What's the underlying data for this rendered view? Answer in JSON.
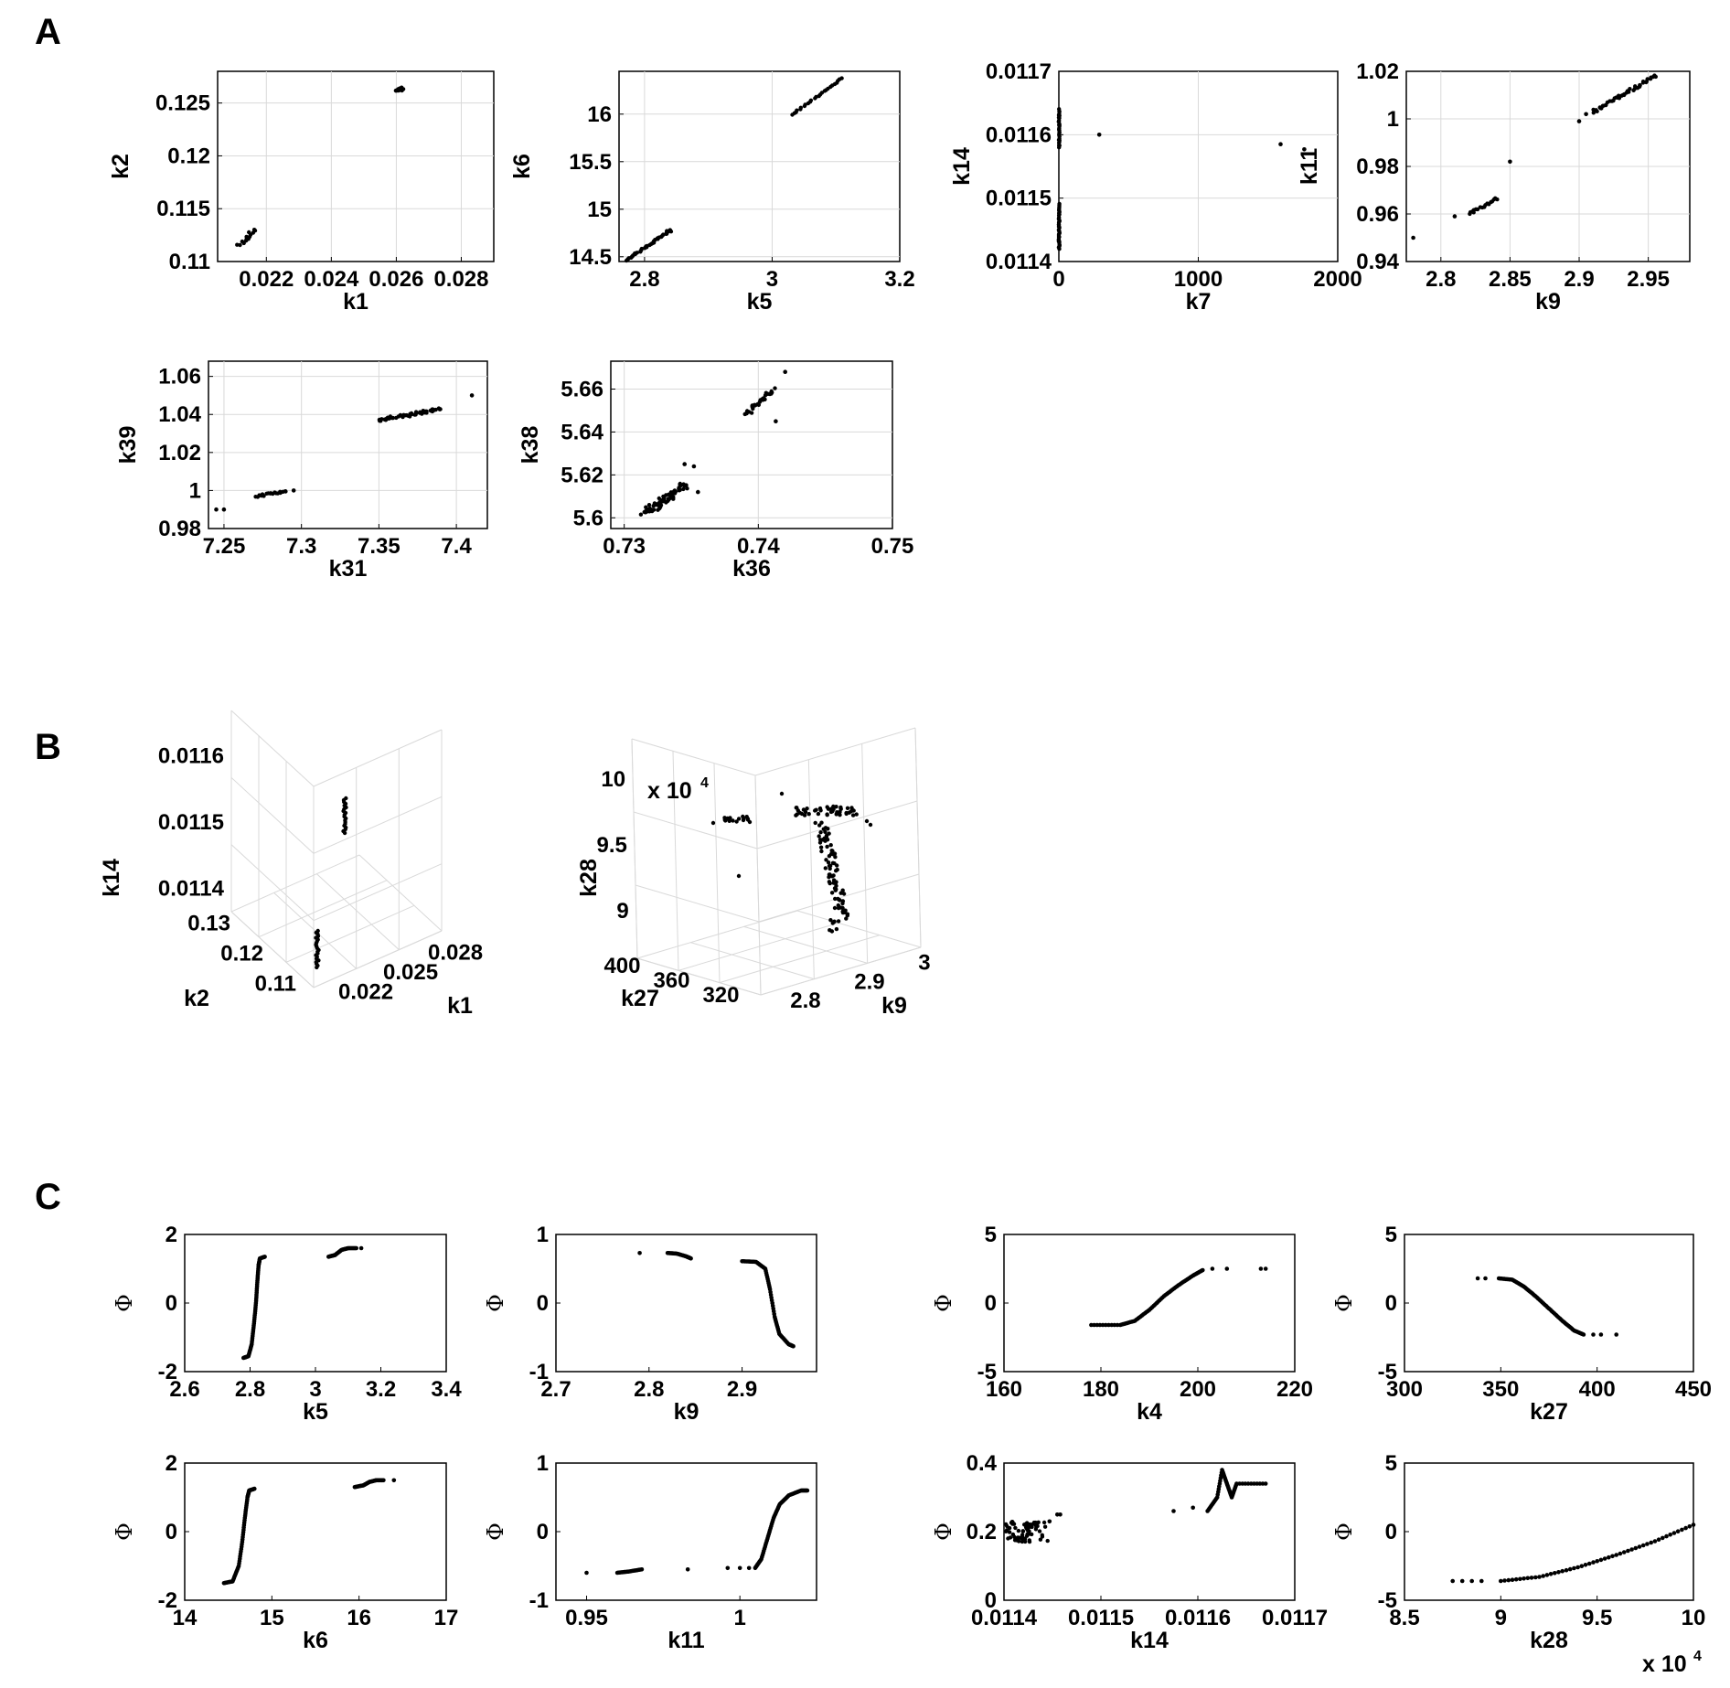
{
  "panels": {
    "A": "A",
    "B": "B",
    "C": "C"
  },
  "chart_data": [
    {
      "panel": "A",
      "type": "scatter",
      "xlabel": "k1",
      "ylabel": "k2",
      "xlim": [
        0.0205,
        0.029
      ],
      "ylim": [
        0.11,
        0.128
      ],
      "xticks": [
        "0.022",
        "0.024",
        "0.026",
        "0.028"
      ],
      "xtickv": [
        0.022,
        0.024,
        0.026,
        0.028
      ],
      "yticks": [
        "0.11",
        "0.115",
        "0.12",
        "0.125"
      ],
      "ytickv": [
        0.11,
        0.115,
        0.12,
        0.125
      ],
      "grid": true,
      "clusters": [
        [
          0.0212,
          0.1115,
          0.0216,
          0.113,
          14,
          0.0001,
          0.0001
        ],
        [
          0.026,
          0.1262,
          0.0262,
          0.1264,
          18,
          7e-05,
          0.00015
        ]
      ],
      "points": []
    },
    {
      "panel": "A",
      "type": "scatter",
      "xlabel": "k5",
      "ylabel": "k6",
      "xlim": [
        2.76,
        3.2
      ],
      "ylim": [
        14.45,
        16.45
      ],
      "xticks": [
        "2.8",
        "3",
        "3.2"
      ],
      "xtickv": [
        2.8,
        3,
        3.2
      ],
      "yticks": [
        "14.5",
        "15",
        "15.5",
        "16"
      ],
      "ytickv": [
        14.5,
        15,
        15.5,
        16
      ],
      "grid": true,
      "clusters": [
        [
          2.77,
          14.46,
          2.84,
          14.77,
          40,
          0.002,
          0.005
        ],
        [
          3.03,
          15.99,
          3.11,
          16.38,
          26,
          0.002,
          0.005
        ]
      ],
      "points": [
        [
          2.835,
          14.77
        ],
        [
          2.84,
          14.78
        ]
      ]
    },
    {
      "panel": "A",
      "type": "scatter",
      "xlabel": "k7",
      "ylabel": "k14",
      "xlim": [
        0,
        2000
      ],
      "ylim": [
        0.0114,
        0.0117
      ],
      "xticks": [
        "0",
        "1000",
        "2000"
      ],
      "xtickv": [
        0,
        1000,
        2000
      ],
      "yticks": [
        "0.0114",
        "0.0115",
        "0.0116",
        "0.0117"
      ],
      "ytickv": [
        0.0114,
        0.0115,
        0.0116,
        0.0117
      ],
      "grid": true,
      "clusters": [
        [
          2,
          0.01142,
          2,
          0.01149,
          40,
          3,
          1e-06
        ],
        [
          2,
          0.01158,
          2,
          0.01164,
          30,
          3,
          1e-06
        ]
      ],
      "points": [
        [
          290,
          0.0116
        ],
        [
          1590,
          0.011585
        ],
        [
          1760,
          0.011577
        ]
      ]
    },
    {
      "panel": "A",
      "type": "scatter",
      "xlabel": "k9",
      "ylabel": "k11",
      "xlim": [
        2.775,
        2.98
      ],
      "ylim": [
        0.94,
        1.02
      ],
      "xticks": [
        "2.8",
        "2.85",
        "2.9",
        "2.95"
      ],
      "xtickv": [
        2.8,
        2.85,
        2.9,
        2.95
      ],
      "yticks": [
        "0.94",
        "0.96",
        "0.98",
        "1",
        "1.02"
      ],
      "ytickv": [
        0.94,
        0.96,
        0.98,
        1,
        1.02
      ],
      "grid": true,
      "clusters": [
        [
          2.82,
          0.96,
          2.84,
          0.9665,
          18,
          0.001,
          0.0006
        ],
        [
          2.91,
          1.003,
          2.955,
          1.018,
          45,
          0.001,
          0.0006
        ]
      ],
      "points": [
        [
          2.78,
          0.95
        ],
        [
          2.81,
          0.959
        ],
        [
          2.85,
          0.982
        ],
        [
          2.9,
          0.999
        ],
        [
          2.905,
          1.002
        ]
      ]
    },
    {
      "panel": "A",
      "type": "scatter",
      "xlabel": "k31",
      "ylabel": "k39",
      "xlim": [
        7.24,
        7.42
      ],
      "ylim": [
        0.98,
        1.068
      ],
      "xticks": [
        "7.25",
        "7.3",
        "7.35",
        "7.4"
      ],
      "xtickv": [
        7.25,
        7.3,
        7.35,
        7.4
      ],
      "yticks": [
        "0.98",
        "1",
        "1.02",
        "1.04",
        "1.06"
      ],
      "ytickv": [
        0.98,
        1,
        1.02,
        1.04,
        1.06
      ],
      "grid": true,
      "clusters": [
        [
          7.27,
          0.997,
          7.29,
          0.9995,
          20,
          0.001,
          0.0007
        ],
        [
          7.35,
          1.037,
          7.39,
          1.043,
          50,
          0.002,
          0.0008
        ]
      ],
      "points": [
        [
          7.245,
          0.99
        ],
        [
          7.25,
          0.99
        ],
        [
          7.295,
          1.0
        ],
        [
          7.41,
          1.05
        ]
      ]
    },
    {
      "panel": "A",
      "type": "scatter",
      "xlabel": "k36",
      "ylabel": "k38",
      "xlim": [
        0.729,
        0.75
      ],
      "ylim": [
        5.595,
        5.673
      ],
      "xticks": [
        "0.73",
        "0.74",
        "0.75"
      ],
      "xtickv": [
        0.73,
        0.74,
        0.75
      ],
      "yticks": [
        "5.6",
        "5.62",
        "5.64",
        "5.66"
      ],
      "ytickv": [
        5.6,
        5.62,
        5.64,
        5.66
      ],
      "grid": true,
      "clusters": [
        [
          0.7315,
          5.602,
          0.7345,
          5.615,
          70,
          0.0003,
          0.0018
        ],
        [
          0.739,
          5.648,
          0.7412,
          5.66,
          30,
          0.00015,
          0.0012
        ]
      ],
      "points": [
        [
          0.7352,
          5.624
        ],
        [
          0.7345,
          5.625
        ],
        [
          0.7413,
          5.645
        ],
        [
          0.742,
          5.668
        ],
        [
          0.7355,
          5.612
        ]
      ]
    },
    {
      "panel": "B",
      "type": "scatter3d",
      "xlabel": "k1",
      "ylabel": "k2",
      "zlabel": "k14",
      "xticks": [
        "0.022",
        "0.025",
        "0.028"
      ],
      "yticks": [
        "0.11",
        "0.12",
        "0.13"
      ],
      "zticks": [
        "0.0114",
        "0.0115",
        "0.0116"
      ],
      "grid": true
    },
    {
      "panel": "B",
      "type": "scatter3d",
      "xlabel": "k9",
      "ylabel": "k27",
      "zlabel": "k28",
      "zscale": "x 10^4",
      "xticks": [
        "2.8",
        "2.9",
        "3"
      ],
      "yticks": [
        "320",
        "360",
        "400"
      ],
      "zticks": [
        "9",
        "9.5",
        "10"
      ],
      "grid": true
    },
    {
      "panel": "C",
      "type": "scatter",
      "xlabel": "k5",
      "ylabel": "Φ",
      "xlim": [
        2.6,
        3.4
      ],
      "ylim": [
        -2,
        2
      ],
      "xticks": [
        "2.6",
        "2.8",
        "3",
        "3.2",
        "3.4"
      ],
      "xtickv": [
        2.6,
        2.8,
        3,
        3.2,
        3.4
      ],
      "yticks": [
        "-2",
        "0",
        "2"
      ],
      "ytickv": [
        -2,
        0,
        2
      ],
      "grid": false,
      "curve": [
        [
          2.78,
          -1.6
        ],
        [
          2.795,
          -1.55
        ],
        [
          2.805,
          -1.2
        ],
        [
          2.812,
          -0.6
        ],
        [
          2.818,
          0
        ],
        [
          2.822,
          0.6
        ],
        [
          2.826,
          1.1
        ],
        [
          2.83,
          1.3
        ],
        [
          2.845,
          1.35
        ]
      ],
      "curve2": [
        [
          3.04,
          1.35
        ],
        [
          3.06,
          1.4
        ],
        [
          3.08,
          1.55
        ],
        [
          3.1,
          1.6
        ],
        [
          3.125,
          1.6
        ]
      ],
      "points": [
        [
          3.14,
          1.6
        ]
      ]
    },
    {
      "panel": "C",
      "type": "scatter",
      "xlabel": "k9",
      "ylabel": "Φ",
      "xlim": [
        2.7,
        2.98
      ],
      "ylim": [
        -1,
        1
      ],
      "xticks": [
        "2.7",
        "2.8",
        "2.9"
      ],
      "xtickv": [
        2.7,
        2.8,
        2.9
      ],
      "yticks": [
        "-1",
        "0",
        "1"
      ],
      "ytickv": [
        -1,
        0,
        1
      ],
      "grid": false,
      "curve": [
        [
          2.9,
          0.61
        ],
        [
          2.915,
          0.6
        ],
        [
          2.925,
          0.5
        ],
        [
          2.93,
          0.2
        ],
        [
          2.935,
          -0.2
        ],
        [
          2.94,
          -0.45
        ],
        [
          2.95,
          -0.6
        ],
        [
          2.955,
          -0.63
        ]
      ],
      "curve2": [
        [
          2.82,
          0.73
        ],
        [
          2.83,
          0.72
        ],
        [
          2.84,
          0.68
        ],
        [
          2.845,
          0.65
        ]
      ],
      "points": [
        [
          2.79,
          0.73
        ]
      ]
    },
    {
      "panel": "C",
      "type": "scatter",
      "xlabel": "k4",
      "ylabel": "Φ",
      "xlim": [
        160,
        220
      ],
      "ylim": [
        -5,
        5
      ],
      "xticks": [
        "160",
        "180",
        "200",
        "220"
      ],
      "xtickv": [
        160,
        180,
        200,
        220
      ],
      "yticks": [
        "-5",
        "0",
        "5"
      ],
      "ytickv": [
        -5,
        0,
        5
      ],
      "grid": false,
      "curve": [
        [
          178,
          -1.6
        ],
        [
          184,
          -1.6
        ],
        [
          187,
          -1.3
        ],
        [
          190,
          -0.5
        ],
        [
          193,
          0.5
        ],
        [
          196,
          1.3
        ],
        [
          199,
          2.0
        ],
        [
          201,
          2.4
        ]
      ],
      "curve2": [],
      "points": [
        [
          203,
          2.5
        ],
        [
          206,
          2.5
        ],
        [
          213,
          2.5
        ],
        [
          214,
          2.5
        ]
      ]
    },
    {
      "panel": "C",
      "type": "scatter",
      "xlabel": "k27",
      "ylabel": "Φ",
      "xlim": [
        300,
        450
      ],
      "ylim": [
        -5,
        5
      ],
      "xticks": [
        "300",
        "350",
        "400",
        "450"
      ],
      "xtickv": [
        300,
        350,
        400,
        450
      ],
      "yticks": [
        "-5",
        "0",
        "5"
      ],
      "ytickv": [
        -5,
        0,
        5
      ],
      "grid": false,
      "curve": [
        [
          349,
          1.8
        ],
        [
          356,
          1.7
        ],
        [
          362,
          1.2
        ],
        [
          368,
          0.5
        ],
        [
          375,
          -0.4
        ],
        [
          382,
          -1.3
        ],
        [
          388,
          -2.0
        ],
        [
          393,
          -2.3
        ]
      ],
      "curve2": [],
      "points": [
        [
          338,
          1.8
        ],
        [
          342,
          1.8
        ],
        [
          398,
          -2.3
        ],
        [
          402,
          -2.3
        ],
        [
          410,
          -2.3
        ]
      ]
    },
    {
      "panel": "C",
      "type": "scatter",
      "xlabel": "k6",
      "ylabel": "Φ",
      "xlim": [
        14,
        17
      ],
      "ylim": [
        -2,
        2
      ],
      "xticks": [
        "14",
        "15",
        "16",
        "17"
      ],
      "xtickv": [
        14,
        15,
        16,
        17
      ],
      "yticks": [
        "-2",
        "0",
        "2"
      ],
      "ytickv": [
        -2,
        0,
        2
      ],
      "grid": false,
      "curve": [
        [
          14.45,
          -1.5
        ],
        [
          14.55,
          -1.45
        ],
        [
          14.62,
          -1.0
        ],
        [
          14.66,
          -0.3
        ],
        [
          14.69,
          0.4
        ],
        [
          14.72,
          1.0
        ],
        [
          14.74,
          1.2
        ],
        [
          14.8,
          1.25
        ]
      ],
      "curve2": [
        [
          15.95,
          1.3
        ],
        [
          16.05,
          1.35
        ],
        [
          16.12,
          1.45
        ],
        [
          16.2,
          1.5
        ],
        [
          16.28,
          1.5
        ]
      ],
      "points": [
        [
          16.4,
          1.5
        ]
      ]
    },
    {
      "panel": "C",
      "type": "scatter",
      "xlabel": "k11",
      "ylabel": "Φ",
      "xlim": [
        0.94,
        1.025
      ],
      "ylim": [
        -1,
        1
      ],
      "xticks": [
        "0.95",
        "1"
      ],
      "xtickv": [
        0.95,
        1
      ],
      "yticks": [
        "-1",
        "0",
        "1"
      ],
      "ytickv": [
        -1,
        0,
        1
      ],
      "grid": false,
      "curve": [
        [
          1.005,
          -0.53
        ],
        [
          1.007,
          -0.4
        ],
        [
          1.009,
          -0.1
        ],
        [
          1.011,
          0.2
        ],
        [
          1.013,
          0.4
        ],
        [
          1.016,
          0.53
        ],
        [
          1.02,
          0.6
        ],
        [
          1.022,
          0.6
        ]
      ],
      "curve2": [
        [
          0.96,
          -0.6
        ],
        [
          0.964,
          -0.58
        ],
        [
          0.968,
          -0.55
        ]
      ],
      "points": [
        [
          0.95,
          -0.6
        ],
        [
          0.983,
          -0.55
        ],
        [
          0.996,
          -0.53
        ],
        [
          1.0,
          -0.53
        ],
        [
          1.003,
          -0.53
        ]
      ]
    },
    {
      "panel": "C",
      "type": "scatter",
      "xlabel": "k14",
      "ylabel": "Φ",
      "xlim": [
        0.0114,
        0.0117
      ],
      "ylim": [
        0,
        0.4
      ],
      "xticks": [
        "0.0114",
        "0.0115",
        "0.0116",
        "0.0117"
      ],
      "xtickv": [
        0.0114,
        0.0115,
        0.0116,
        0.0117
      ],
      "yticks": [
        "0",
        "0.2",
        "0.4"
      ],
      "ytickv": [
        0,
        0.2,
        0.4
      ],
      "grid": false,
      "cloud": [
        [
          0.011405,
          0.2,
          0.011442,
          0.2,
          70,
          6e-06,
          0.03
        ]
      ],
      "curve": [
        [
          0.01161,
          0.26
        ],
        [
          0.01162,
          0.3
        ],
        [
          0.011625,
          0.38
        ],
        [
          0.01163,
          0.34
        ],
        [
          0.011635,
          0.3
        ],
        [
          0.01164,
          0.34
        ],
        [
          0.01167,
          0.34
        ]
      ],
      "curve2": [],
      "points": [
        [
          0.011447,
          0.23
        ],
        [
          0.011455,
          0.25
        ],
        [
          0.011458,
          0.25
        ],
        [
          0.011575,
          0.26
        ],
        [
          0.011595,
          0.27
        ]
      ]
    },
    {
      "panel": "C",
      "type": "scatter",
      "xlabel": "k28",
      "ylabel": "Φ",
      "xscale": "x 10^4",
      "xlim": [
        8.5,
        10
      ],
      "ylim": [
        -5,
        5
      ],
      "xticks": [
        "8.5",
        "9",
        "9.5",
        "10"
      ],
      "xtickv": [
        8.5,
        9,
        9.5,
        10
      ],
      "yticks": [
        "-5",
        "0",
        "5"
      ],
      "ytickv": [
        -5,
        0,
        5
      ],
      "grid": false,
      "curve": [
        [
          9.0,
          -3.6
        ],
        [
          9.2,
          -3.3
        ],
        [
          9.4,
          -2.6
        ],
        [
          9.6,
          -1.7
        ],
        [
          9.8,
          -0.7
        ],
        [
          10.0,
          0.5
        ]
      ],
      "curve2": [],
      "points": [
        [
          8.75,
          -3.6
        ],
        [
          8.8,
          -3.6
        ],
        [
          8.85,
          -3.6
        ],
        [
          8.9,
          -3.6
        ]
      ]
    }
  ]
}
